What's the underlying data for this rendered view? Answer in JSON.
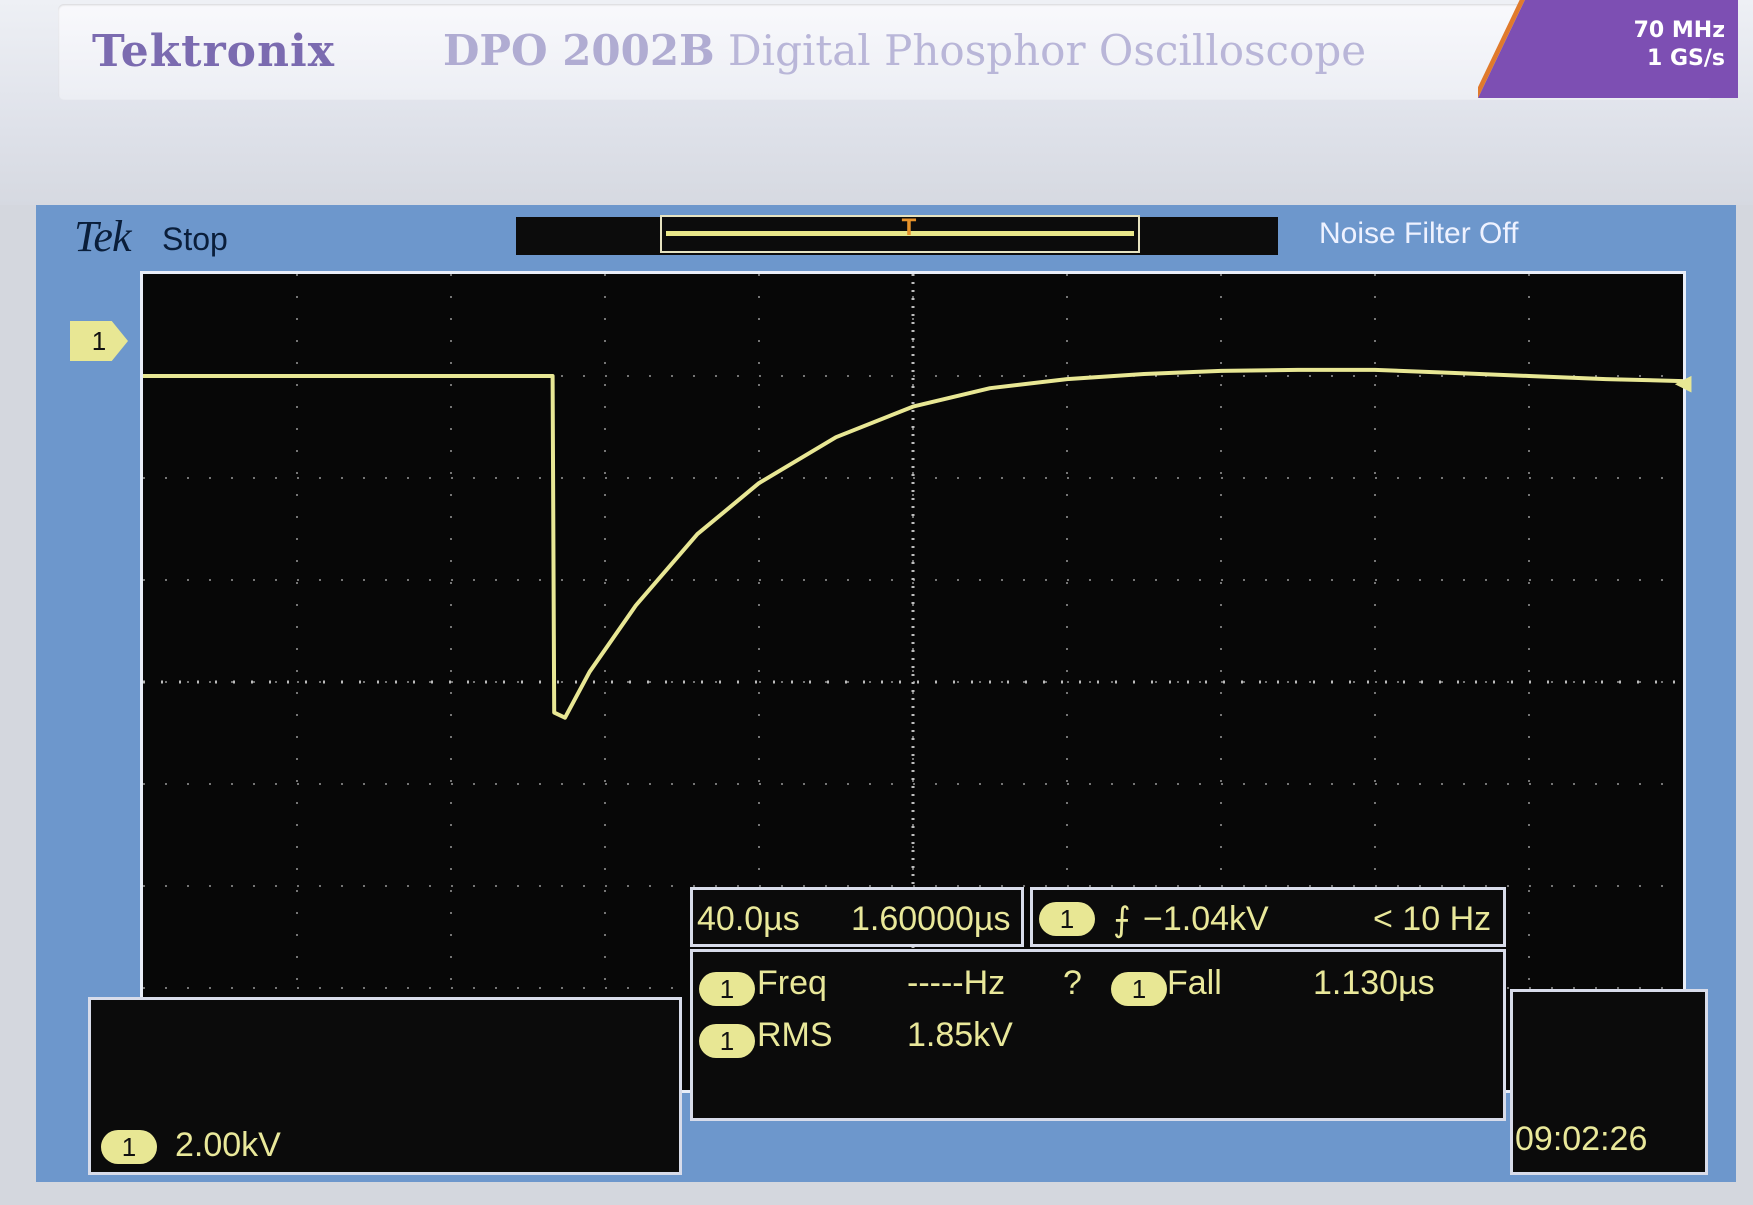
{
  "device": {
    "brand": "Tektronix",
    "model": "DPO 2002B",
    "description": "Digital Phosphor Oscilloscope",
    "bandwidth": "70 MHz",
    "sample_rate": "1 GS/s"
  },
  "status_bar": {
    "logo": "Tek",
    "acquisition_state": "Stop",
    "noise_filter": "Noise Filter Off",
    "trigger_position_marker": "T"
  },
  "channel": {
    "number": "1",
    "scale": "2.00kV",
    "color": "#e8e794"
  },
  "timebase": {
    "horizontal_scale": "40.0µs",
    "horizontal_position": "1.60000µs"
  },
  "trigger": {
    "source": "1",
    "slope_symbol": "⨍",
    "level": "−1.04kV",
    "frequency": "< 10 Hz"
  },
  "measurements": [
    {
      "channel": "1",
      "name": "Freq",
      "value": "-----Hz",
      "status": "?"
    },
    {
      "channel": "1",
      "name": "Fall",
      "value": "1.130µs"
    },
    {
      "channel": "1",
      "name": "RMS",
      "value": "1.85kV"
    }
  ],
  "clock": "09:02:26",
  "chart_data": {
    "type": "line",
    "xlabel": "",
    "ylabel": "",
    "x_unit": "div",
    "y_unit": "div",
    "xlim": [
      0,
      10
    ],
    "ylim": [
      -4,
      4
    ],
    "grid": true,
    "series": [
      {
        "color": "#e8e794",
        "x": [
          0,
          1,
          2,
          2.66,
          2.67,
          2.74,
          2.9,
          3.2,
          3.6,
          4.0,
          4.5,
          5.0,
          5.5,
          6.0,
          6.5,
          7.0,
          7.5,
          8.0,
          8.5,
          9.0,
          9.5,
          10
        ],
        "y": [
          3.0,
          3.0,
          3.0,
          3.0,
          -0.3,
          -0.35,
          0.1,
          0.75,
          1.45,
          1.95,
          2.4,
          2.7,
          2.88,
          2.97,
          3.02,
          3.05,
          3.06,
          3.06,
          3.03,
          3.0,
          2.97,
          2.95
        ]
      }
    ]
  }
}
